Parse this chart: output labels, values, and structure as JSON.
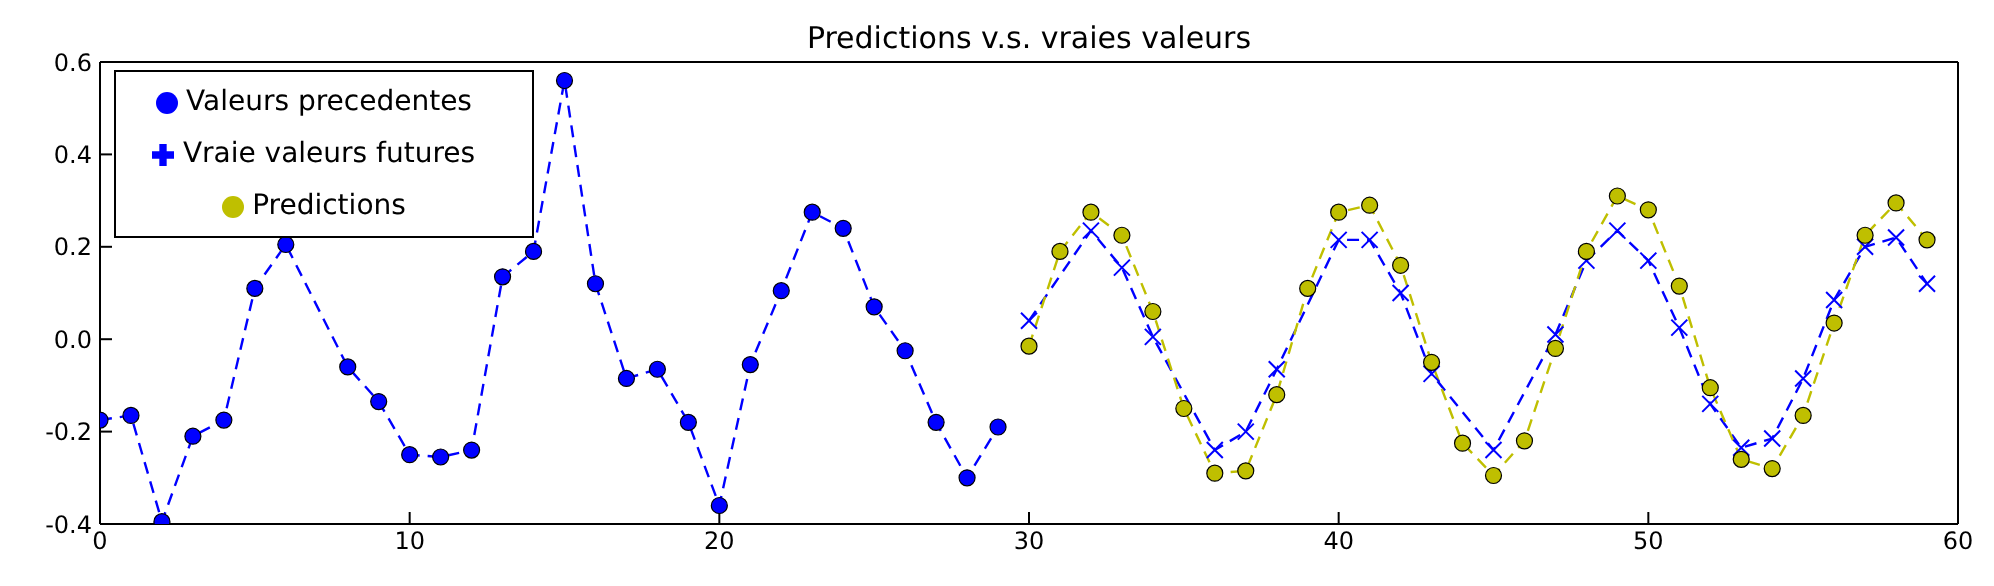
{
  "chart_data": {
    "type": "line",
    "title": "Predictions v.s. vraies valeurs",
    "xlim": [
      0,
      60
    ],
    "xticks": [
      0,
      10,
      20,
      30,
      40,
      50,
      60
    ],
    "ylim": [
      -0.4,
      0.6
    ],
    "yticks": [
      {
        "value": -0.4,
        "label": "-0.4"
      },
      {
        "value": -0.2,
        "label": "-0.2"
      },
      {
        "value": 0,
        "label": "0.0"
      },
      {
        "value": 0.2,
        "label": "0.2"
      },
      {
        "value": 0.4,
        "label": "0.4"
      },
      {
        "value": 0.6,
        "label": "0.6"
      }
    ],
    "grid": false,
    "legend": "top left",
    "line_style": "dashed",
    "series": [
      {
        "name": "Valeurs precedentes",
        "color": "#0000ff",
        "marker": "circle",
        "x": [
          0,
          1,
          2,
          3,
          4,
          5,
          6,
          7,
          8,
          9,
          10,
          11,
          12,
          13,
          14,
          15,
          16,
          17,
          18,
          19,
          20,
          21,
          22,
          23,
          24,
          25,
          26,
          27,
          28,
          29
        ],
        "values": [
          -0.175,
          -0.165,
          -0.395,
          -0.21,
          -0.175,
          0.11,
          0.205,
          null,
          -0.06,
          -0.135,
          -0.25,
          -0.255,
          -0.24,
          0.135,
          0.19,
          0.56,
          0.12,
          -0.085,
          -0.065,
          -0.18,
          -0.36,
          -0.055,
          0.105,
          0.275,
          0.24,
          0.07,
          -0.025,
          -0.18,
          -0.3,
          -0.19
        ]
      },
      {
        "name": "Vraie valeurs futures",
        "color": "#0000ff",
        "marker": "cross",
        "x": [
          30,
          31,
          32,
          33,
          34,
          35,
          36,
          37,
          38,
          39,
          40,
          41,
          42,
          43,
          44,
          45,
          46,
          47,
          48,
          49,
          50,
          51,
          52,
          53,
          54,
          55,
          56,
          57,
          58,
          59
        ],
        "values": [
          0.04,
          null,
          0.235,
          0.155,
          0.005,
          null,
          -0.24,
          -0.2,
          -0.065,
          null,
          0.215,
          0.215,
          0.1,
          -0.075,
          null,
          -0.24,
          null,
          0.01,
          0.17,
          0.235,
          0.17,
          0.025,
          -0.14,
          -0.235,
          -0.215,
          -0.085,
          0.085,
          0.2,
          0.22,
          0.12
        ]
      },
      {
        "name": "Predictions",
        "color": "#bfbf00",
        "marker": "circle",
        "x": [
          30,
          31,
          32,
          33,
          34,
          35,
          36,
          37,
          38,
          39,
          40,
          41,
          42,
          43,
          44,
          45,
          46,
          47,
          48,
          49,
          50,
          51,
          52,
          53,
          54,
          55,
          56,
          57,
          58,
          59
        ],
        "values": [
          -0.015,
          0.19,
          0.275,
          0.225,
          0.06,
          -0.15,
          -0.29,
          -0.285,
          -0.12,
          0.11,
          0.275,
          0.29,
          0.16,
          -0.05,
          -0.225,
          -0.295,
          -0.22,
          -0.02,
          0.19,
          0.31,
          0.28,
          0.115,
          -0.105,
          -0.26,
          -0.28,
          -0.165,
          0.035,
          0.225,
          0.295,
          0.215
        ]
      }
    ]
  }
}
